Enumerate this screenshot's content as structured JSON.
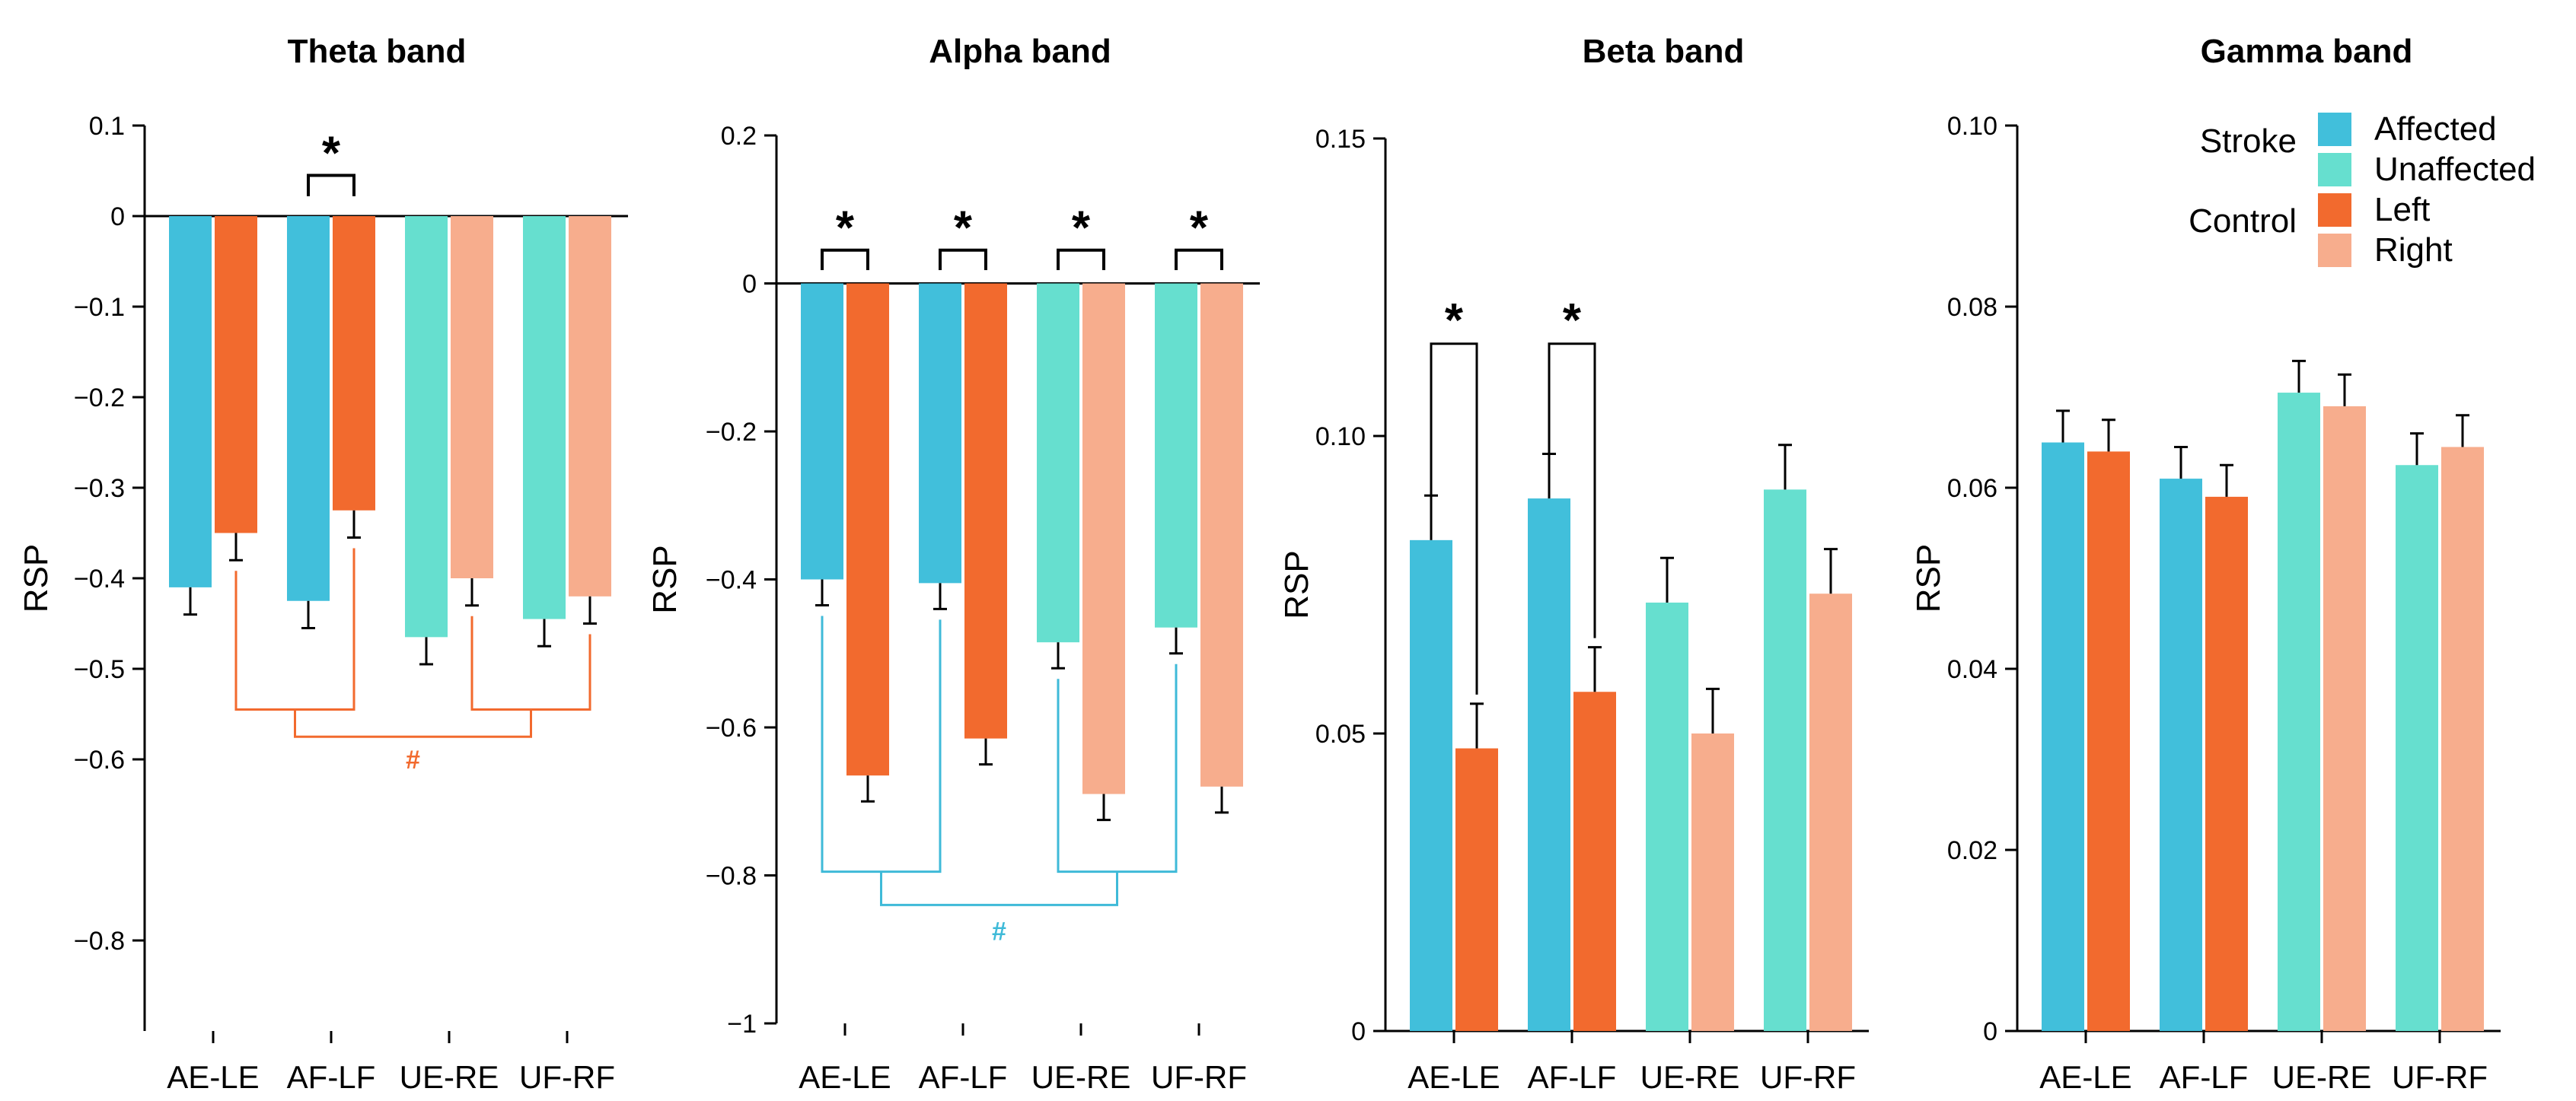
{
  "colors": {
    "affected": "#41bfdb",
    "unaffected": "#66dfcf",
    "left": "#f26a2e",
    "right": "#f7ad8d",
    "theta_bracket": "#f26a2e",
    "alpha_bracket": "#3fbad8",
    "axis": "#000000"
  },
  "legend": {
    "stroke_label": "Stroke",
    "control_label": "Control",
    "items": [
      "Affected",
      "Unaffected",
      "Left",
      "Right"
    ]
  },
  "chart_data": [
    {
      "type": "bar",
      "title": "Theta band",
      "ylabel": "RSP",
      "xlabel": "",
      "categories": [
        "AE-LE",
        "AF-LF",
        "UE-RE",
        "UF-RF"
      ],
      "ylim": [
        -0.9,
        0.1
      ],
      "yticks": [
        0.1,
        0,
        -0.1,
        -0.2,
        -0.3,
        -0.4,
        -0.5,
        -0.6,
        -0.8
      ],
      "ytick_labels": [
        "0.1",
        "0",
        "−0.1",
        "−0.2",
        "−0.3",
        "−0.4",
        "−0.5",
        "−0.6",
        "−0.8"
      ],
      "series": [
        {
          "name": "Stroke",
          "values": [
            -0.41,
            -0.425,
            -0.465,
            -0.445
          ],
          "errors": [
            0.03,
            0.03,
            0.03,
            0.03
          ],
          "colors": [
            "affected",
            "affected",
            "unaffected",
            "unaffected"
          ]
        },
        {
          "name": "Control",
          "values": [
            -0.35,
            -0.325,
            -0.4,
            -0.42
          ],
          "errors": [
            0.03,
            0.03,
            0.03,
            0.03
          ],
          "colors": [
            "left",
            "left",
            "right",
            "right"
          ]
        }
      ],
      "significance": [
        {
          "category": "AF-LF",
          "label": "*"
        }
      ],
      "group_bracket": {
        "label": "#",
        "color": "theta_bracket"
      }
    },
    {
      "type": "bar",
      "title": "Alpha band",
      "ylabel": "RSP",
      "xlabel": "",
      "categories": [
        "AE-LE",
        "AF-LF",
        "UE-RE",
        "UF-RF"
      ],
      "ylim": [
        -1.0,
        0.2
      ],
      "yticks": [
        0.2,
        0,
        -0.2,
        -0.4,
        -0.6,
        -0.8,
        -1
      ],
      "ytick_labels": [
        "0.2",
        "0",
        "−0.2",
        "−0.4",
        "−0.6",
        "−0.8",
        "−1"
      ],
      "series": [
        {
          "name": "Stroke",
          "values": [
            -0.4,
            -0.405,
            -0.485,
            -0.465
          ],
          "errors": [
            0.035,
            0.035,
            0.035,
            0.035
          ],
          "colors": [
            "affected",
            "affected",
            "unaffected",
            "unaffected"
          ]
        },
        {
          "name": "Control",
          "values": [
            -0.665,
            -0.615,
            -0.69,
            -0.68
          ],
          "errors": [
            0.035,
            0.035,
            0.035,
            0.035
          ],
          "colors": [
            "left",
            "left",
            "right",
            "right"
          ]
        }
      ],
      "significance": [
        {
          "category": "AE-LE",
          "label": "*"
        },
        {
          "category": "AF-LF",
          "label": "*"
        },
        {
          "category": "UE-RE",
          "label": "*"
        },
        {
          "category": "UF-RF",
          "label": "*"
        }
      ],
      "group_bracket": {
        "label": "#",
        "color": "alpha_bracket"
      }
    },
    {
      "type": "bar",
      "title": "Beta band",
      "ylabel": "RSP",
      "xlabel": "",
      "categories": [
        "AE-LE",
        "AF-LF",
        "UE-RE",
        "UF-RF"
      ],
      "ylim": [
        0,
        0.15
      ],
      "yticks": [
        0,
        0.05,
        0.1,
        0.15
      ],
      "ytick_labels": [
        "0",
        "0.05",
        "0.10",
        "0.15"
      ],
      "series": [
        {
          "name": "Stroke",
          "values": [
            0.0825,
            0.0895,
            0.072,
            0.091
          ],
          "errors": [
            0.0075,
            0.0075,
            0.0075,
            0.0075
          ],
          "colors": [
            "affected",
            "affected",
            "unaffected",
            "unaffected"
          ]
        },
        {
          "name": "Control",
          "values": [
            0.0475,
            0.057,
            0.05,
            0.0735
          ],
          "errors": [
            0.0075,
            0.0075,
            0.0075,
            0.0075
          ],
          "colors": [
            "left",
            "left",
            "right",
            "right"
          ]
        }
      ],
      "significance": [
        {
          "category": "AE-LE",
          "label": "*"
        },
        {
          "category": "AF-LF",
          "label": "*"
        }
      ]
    },
    {
      "type": "bar",
      "title": "Gamma band",
      "ylabel": "RSP",
      "xlabel": "",
      "categories": [
        "AE-LE",
        "AF-LF",
        "UE-RE",
        "UF-RF"
      ],
      "ylim": [
        0,
        0.1
      ],
      "yticks": [
        0,
        0.02,
        0.04,
        0.06,
        0.08,
        0.1
      ],
      "ytick_labels": [
        "0",
        "0.02",
        "0.04",
        "0.06",
        "0.08",
        "0.10"
      ],
      "series": [
        {
          "name": "Stroke",
          "values": [
            0.065,
            0.061,
            0.0705,
            0.0625
          ],
          "errors": [
            0.0035,
            0.0035,
            0.0035,
            0.0035
          ],
          "colors": [
            "affected",
            "affected",
            "unaffected",
            "unaffected"
          ]
        },
        {
          "name": "Control",
          "values": [
            0.064,
            0.059,
            0.069,
            0.0645
          ],
          "errors": [
            0.0035,
            0.0035,
            0.0035,
            0.0035
          ],
          "colors": [
            "left",
            "left",
            "right",
            "right"
          ]
        }
      ],
      "significance": [],
      "legend": "top-right"
    }
  ]
}
